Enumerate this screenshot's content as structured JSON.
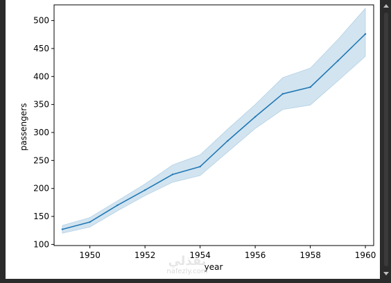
{
  "chart_data": {
    "type": "line",
    "title": "",
    "xlabel": "year",
    "ylabel": "passengers",
    "xlim": [
      1948.7,
      1960.3
    ],
    "ylim": [
      98,
      528
    ],
    "xticks": [
      "1950",
      "1952",
      "1954",
      "1956",
      "1958",
      "1960"
    ],
    "xtick_values": [
      1950,
      1952,
      1954,
      1956,
      1958,
      1960
    ],
    "yticks": [
      "100",
      "150",
      "200",
      "250",
      "300",
      "350",
      "400",
      "450",
      "500"
    ],
    "ytick_values": [
      100,
      150,
      200,
      250,
      300,
      350,
      400,
      450,
      500
    ],
    "grid": false,
    "x": [
      1949,
      1950,
      1951,
      1952,
      1953,
      1954,
      1955,
      1956,
      1957,
      1958,
      1959,
      1960
    ],
    "series": [
      {
        "values": [
          127,
          140,
          170,
          197,
          225,
          239,
          285,
          328,
          369,
          381,
          428,
          476
        ],
        "ci_lower": [
          120,
          131,
          160,
          187,
          211,
          223,
          265,
          307,
          341,
          349,
          392,
          436
        ],
        "ci_upper": [
          134,
          148,
          178,
          208,
          242,
          260,
          306,
          350,
          398,
          415,
          466,
          522
        ],
        "color": "#1f77b4",
        "band_color": "#1f77b4"
      }
    ]
  },
  "watermark": {
    "logo": "نفذلي",
    "text": "nafezly.com"
  },
  "colors": {
    "frame": "#2b2b2b",
    "canvas": "#ffffff",
    "line": "#1f77b4"
  }
}
